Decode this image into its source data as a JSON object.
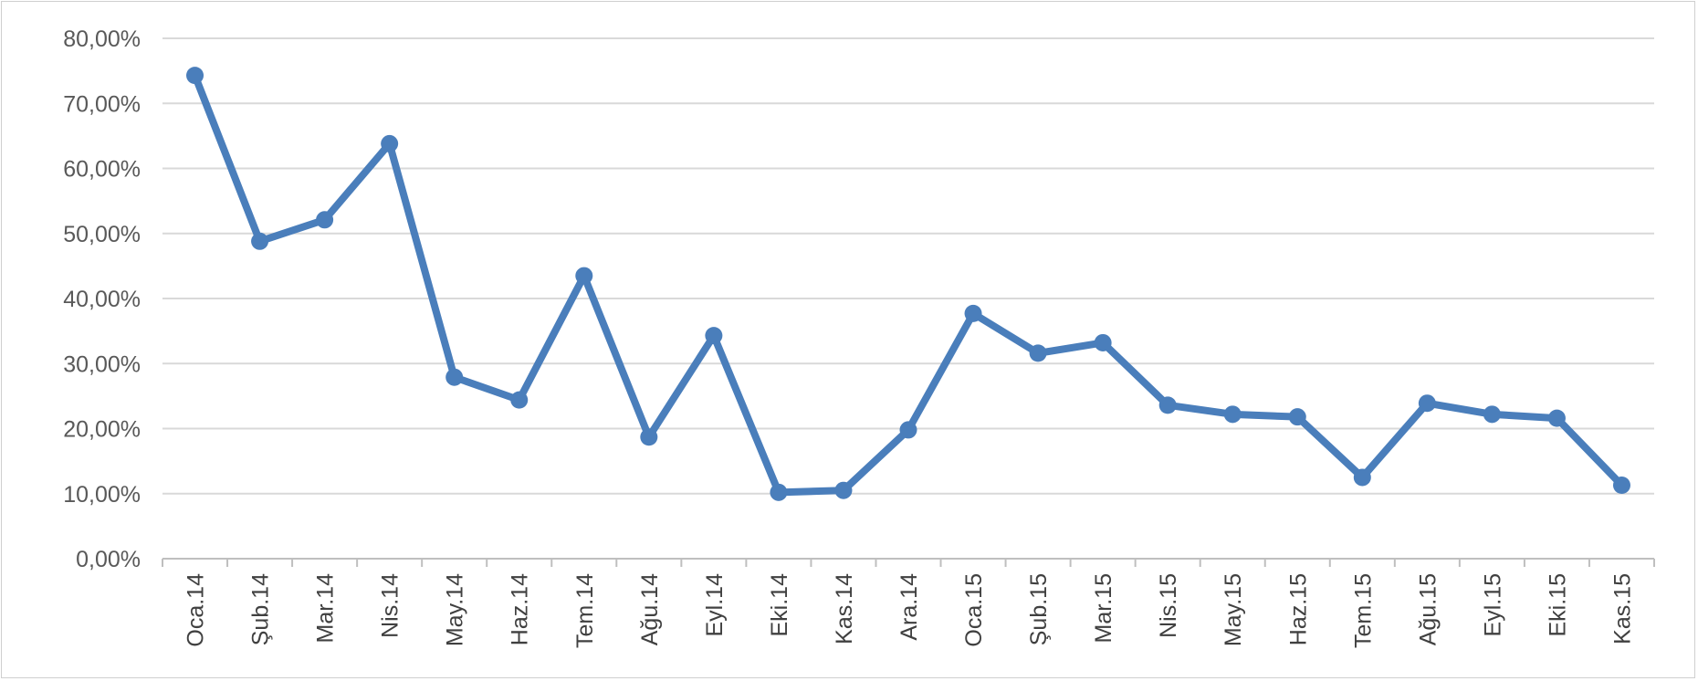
{
  "chart_data": {
    "type": "line",
    "title": "",
    "xlabel": "",
    "ylabel": "",
    "categories": [
      "Oca.14",
      "Şub.14",
      "Mar.14",
      "Nis.14",
      "May.14",
      "Haz.14",
      "Tem.14",
      "Ağu.14",
      "Eyl.14",
      "Eki.14",
      "Kas.14",
      "Ara.14",
      "Oca.15",
      "Şub.15",
      "Mar.15",
      "Nis.15",
      "May.15",
      "Haz.15",
      "Tem.15",
      "Ağu.15",
      "Eyl.15",
      "Eki.15",
      "Kas.15"
    ],
    "series": [
      {
        "color": "#4a7ebb",
        "values": [
          74.3,
          48.8,
          52.1,
          63.8,
          27.9,
          24.4,
          43.5,
          18.7,
          34.3,
          10.2,
          10.5,
          19.8,
          37.7,
          31.6,
          33.2,
          23.6,
          22.2,
          21.8,
          12.5,
          23.9,
          22.2,
          21.6,
          11.3
        ]
      }
    ],
    "ylim": [
      0,
      80
    ],
    "yticks": [
      "0,00%",
      "10,00%",
      "20,00%",
      "30,00%",
      "40,00%",
      "50,00%",
      "60,00%",
      "70,00%",
      "80,00%"
    ],
    "grid": true,
    "legend": "none"
  }
}
